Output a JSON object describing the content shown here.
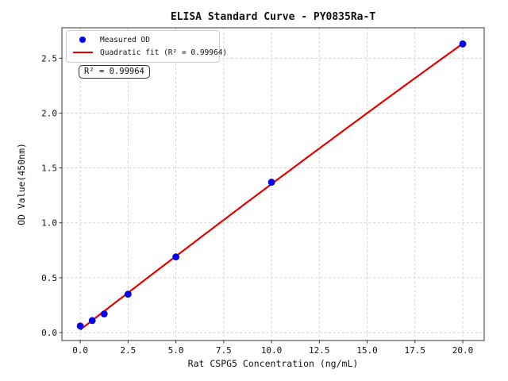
{
  "figure": {
    "background_color": "#ffffff"
  },
  "chart_data": {
    "type": "scatter",
    "title": "ELISA Standard Curve - PY0835Ra-T",
    "xlabel": "Rat CSPG5 Concentration (ng/mL)",
    "ylabel": "OD Value(450nm)",
    "xlim": [
      -0.96,
      21.12
    ],
    "ylim": [
      -0.072,
      2.777
    ],
    "grid": true,
    "grid_style": "dashed",
    "grid_color": "#c9c9c9",
    "spine_color": "#333333",
    "legend_position": "upper-left",
    "xticks": {
      "values": [
        0,
        2.5,
        5,
        7.5,
        10,
        12.5,
        15,
        17.5,
        20
      ],
      "labels": [
        "0.0",
        "2.5",
        "5.0",
        "7.5",
        "10.0",
        "12.5",
        "15.0",
        "17.5",
        "20.0"
      ]
    },
    "yticks": {
      "values": [
        0,
        0.5,
        1.0,
        1.5,
        2.0,
        2.5
      ],
      "labels": [
        "0.0",
        "0.5",
        "1.0",
        "1.5",
        "2.0",
        "2.5"
      ]
    },
    "series": [
      {
        "name": "Measured OD",
        "type": "scatter",
        "color": "#0000ee",
        "marker": "circle",
        "x": [
          0,
          0.625,
          1.25,
          2.5,
          5,
          10,
          20
        ],
        "y": [
          0.06,
          0.11,
          0.17,
          0.35,
          0.69,
          1.37,
          2.63
        ]
      },
      {
        "name": "Quadratic fit (R² = 0.99964)",
        "type": "quadratic-fit",
        "color": "#e60000",
        "fit_of_series": 0,
        "fit_range": [
          0,
          20
        ],
        "r_squared": 0.99964
      }
    ],
    "annotation": "R² = 0.99964"
  }
}
